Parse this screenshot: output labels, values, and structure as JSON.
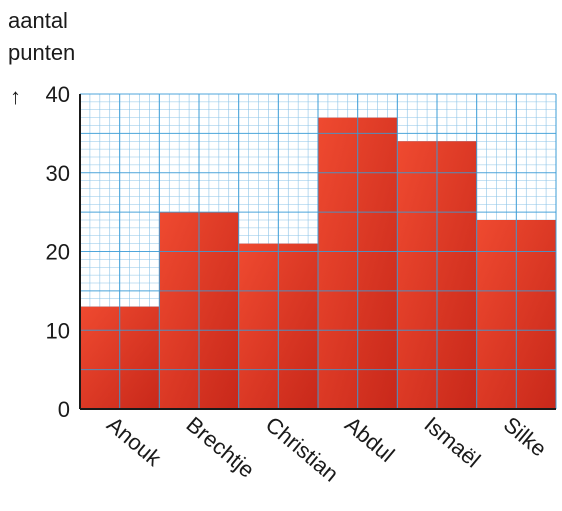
{
  "chart_data": {
    "type": "bar",
    "ylabel_lines": [
      "aantal",
      "punten"
    ],
    "y_arrow": "↑",
    "categories": [
      "Anouk",
      "Brechtje",
      "Christian",
      "Abdul",
      "Ismaël",
      "Silke"
    ],
    "values": [
      13,
      25,
      21,
      37,
      34,
      24
    ],
    "ylim": [
      0,
      40
    ],
    "yticks": [
      0,
      10,
      20,
      30,
      40
    ],
    "grid": true,
    "colors": {
      "bar": "#e23a24",
      "bar_dark": "#c8281a",
      "grid_major": "#3a9bd6",
      "grid_minor": "#8cc4e8",
      "axis": "#1a1a1a"
    }
  }
}
